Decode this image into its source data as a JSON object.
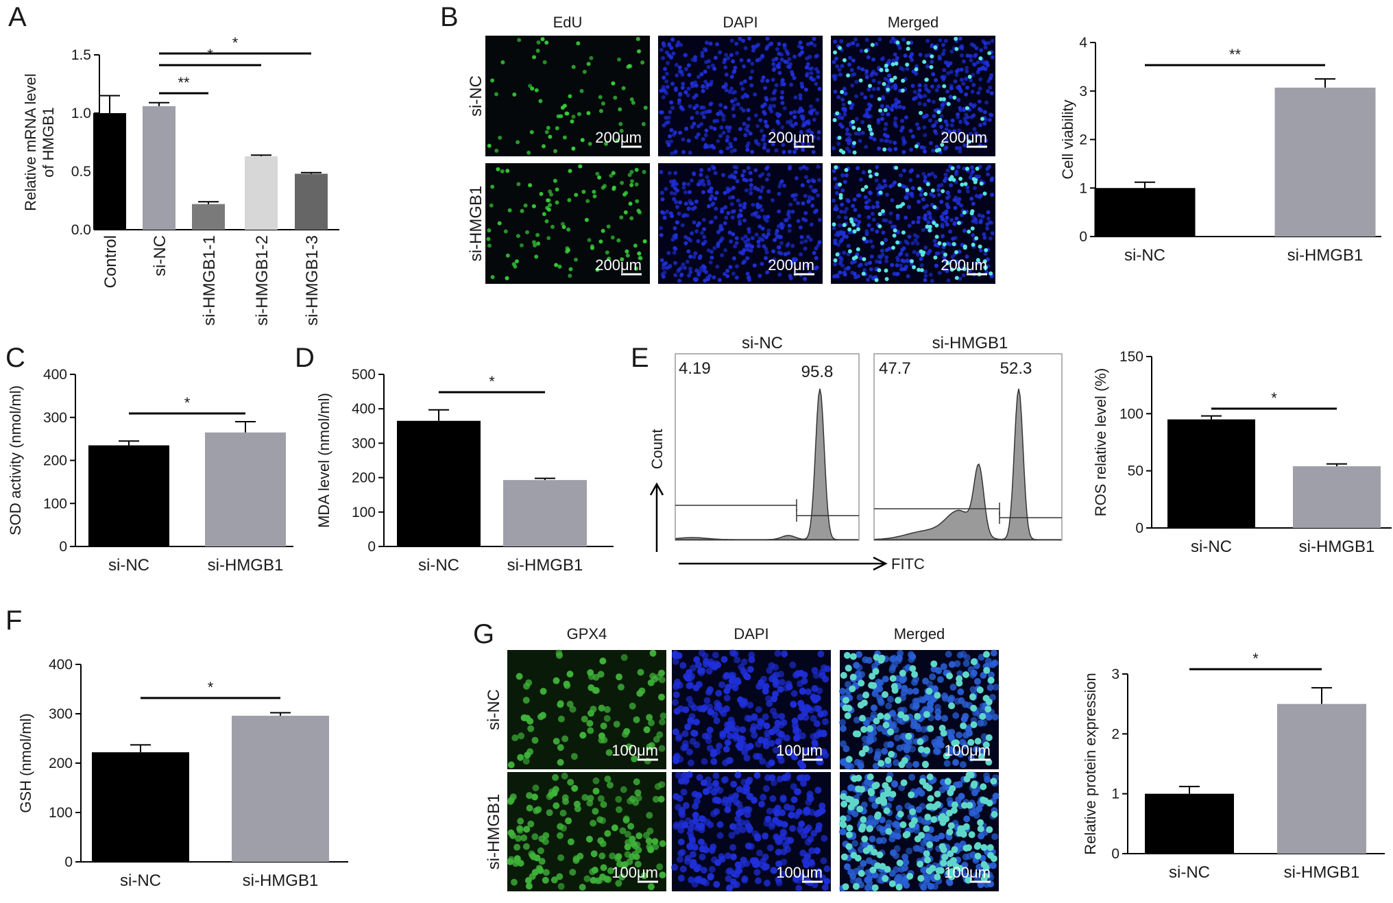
{
  "panels": {
    "A": {
      "letter": "A"
    },
    "B": {
      "letter": "B",
      "columns": [
        "EdU",
        "DAPI",
        "Merged"
      ],
      "rows": [
        "si-NC",
        "si-HMGB1"
      ],
      "scalebar": "200μm"
    },
    "C": {
      "letter": "C"
    },
    "D": {
      "letter": "D"
    },
    "E": {
      "letter": "E",
      "flow": {
        "plots": [
          {
            "title": "si-NC",
            "left_pct": "4.19",
            "right_pct": "95.8"
          },
          {
            "title": "si-HMGB1",
            "left_pct": "47.7",
            "right_pct": "52.3"
          }
        ],
        "y_label": "Count",
        "x_label": "FITC"
      }
    },
    "F": {
      "letter": "F"
    },
    "G": {
      "letter": "G",
      "columns": [
        "GPX4",
        "DAPI",
        "Merged"
      ],
      "rows": [
        "si-NC",
        "si-HMGB1"
      ],
      "scalebar": "100μm"
    }
  },
  "colors": {
    "black_bar": "#000000",
    "gray_bar": "#9f9fa9",
    "dark_gray": "#7a7a7a",
    "light_gray": "#d7d7d7",
    "mid_gray": "#666666",
    "edu_green": "#36d13a",
    "dapi_blue": "#1f2fd8",
    "gpx4_green": "#3fb33a",
    "hist_fill": "#9a9a9a"
  },
  "chart_data": [
    {
      "id": "A",
      "type": "bar",
      "ylabel": [
        "Relative mRNA level",
        "of HMGB1"
      ],
      "ylim": [
        0,
        1.5
      ],
      "yticks": [
        "0.0",
        "0.5",
        "1.0",
        "1.5"
      ],
      "categories": [
        "Control",
        "si-NC",
        "si-HMGB1-1",
        "si-HMGB1-2",
        "si-HMGB1-3"
      ],
      "values": [
        1.0,
        1.06,
        0.22,
        0.63,
        0.48
      ],
      "errors": [
        0.15,
        0.03,
        0.02,
        0.01,
        0.01
      ],
      "annotations": [
        {
          "from": "si-NC",
          "to": "si-HMGB1-1",
          "label": "**"
        },
        {
          "from": "si-NC",
          "to": "si-HMGB1-2",
          "label": "*"
        },
        {
          "from": "si-NC",
          "to": "si-HMGB1-3",
          "label": "*"
        }
      ]
    },
    {
      "id": "B",
      "type": "bar",
      "ylabel": [
        "Cell viability"
      ],
      "ylim": [
        0,
        4
      ],
      "yticks": [
        "0",
        "1",
        "2",
        "3",
        "4"
      ],
      "categories": [
        "si-NC",
        "si-HMGB1"
      ],
      "values": [
        1.0,
        3.07
      ],
      "errors": [
        0.12,
        0.18
      ],
      "annotations": [
        {
          "from": "si-NC",
          "to": "si-HMGB1",
          "label": "**"
        }
      ]
    },
    {
      "id": "C",
      "type": "bar",
      "ylabel": [
        "SOD activity (nmol/ml)"
      ],
      "ylim": [
        0,
        400
      ],
      "yticks": [
        "0",
        "100",
        "200",
        "300",
        "400"
      ],
      "categories": [
        "si-NC",
        "si-HMGB1"
      ],
      "values": [
        235,
        265
      ],
      "errors": [
        10,
        25
      ],
      "annotations": [
        {
          "from": "si-NC",
          "to": "si-HMGB1",
          "label": "*"
        }
      ]
    },
    {
      "id": "D",
      "type": "bar",
      "ylabel": [
        "MDA level (nmol/ml)"
      ],
      "ylim": [
        0,
        500
      ],
      "yticks": [
        "0",
        "100",
        "200",
        "300",
        "400",
        "500"
      ],
      "categories": [
        "si-NC",
        "si-HMGB1"
      ],
      "values": [
        365,
        193
      ],
      "errors": [
        32,
        5
      ],
      "annotations": [
        {
          "from": "si-NC",
          "to": "si-HMGB1",
          "label": "*"
        }
      ]
    },
    {
      "id": "E",
      "type": "bar",
      "ylabel": [
        "ROS relative level (%)"
      ],
      "ylim": [
        0,
        150
      ],
      "yticks": [
        "0",
        "50",
        "100",
        "150"
      ],
      "categories": [
        "si-NC",
        "si-HMGB1"
      ],
      "values": [
        95,
        54
      ],
      "errors": [
        3,
        2
      ],
      "annotations": [
        {
          "from": "si-NC",
          "to": "si-HMGB1",
          "label": "*"
        }
      ]
    },
    {
      "id": "F",
      "type": "bar",
      "ylabel": [
        "GSH (nmol/ml)"
      ],
      "ylim": [
        0,
        400
      ],
      "yticks": [
        "0",
        "100",
        "200",
        "300",
        "400"
      ],
      "categories": [
        "si-NC",
        "si-HMGB1"
      ],
      "values": [
        222,
        296
      ],
      "errors": [
        15,
        6
      ],
      "annotations": [
        {
          "from": "si-NC",
          "to": "si-HMGB1",
          "label": "*"
        }
      ]
    },
    {
      "id": "G",
      "type": "bar",
      "ylabel": [
        "Relative protein expression"
      ],
      "ylim": [
        0,
        3
      ],
      "yticks": [
        "0",
        "1",
        "2",
        "3"
      ],
      "categories": [
        "si-NC",
        "si-HMGB1"
      ],
      "values": [
        1.0,
        2.5
      ],
      "errors": [
        0.12,
        0.27
      ],
      "annotations": [
        {
          "from": "si-NC",
          "to": "si-HMGB1",
          "label": "*"
        }
      ]
    }
  ]
}
